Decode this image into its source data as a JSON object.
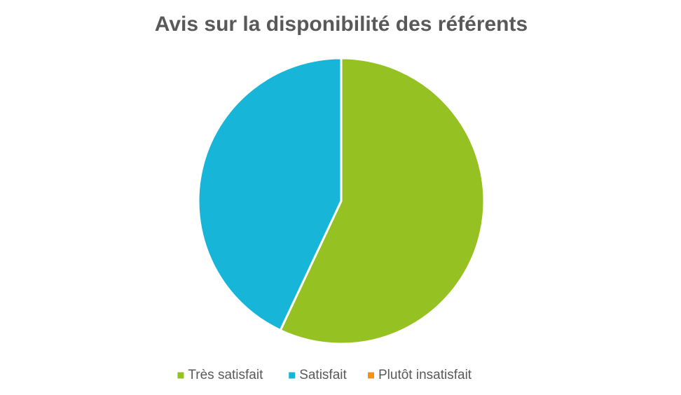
{
  "chart_data": {
    "type": "pie",
    "title": "Avis sur la disponibilité des référents",
    "categories": [
      "Très satisfait",
      "Satisfait",
      "Plutôt insatisfait"
    ],
    "values": [
      57,
      43,
      0
    ],
    "colors": [
      "#95c122",
      "#17b6d9",
      "#f39219"
    ],
    "legend": "bottom"
  }
}
